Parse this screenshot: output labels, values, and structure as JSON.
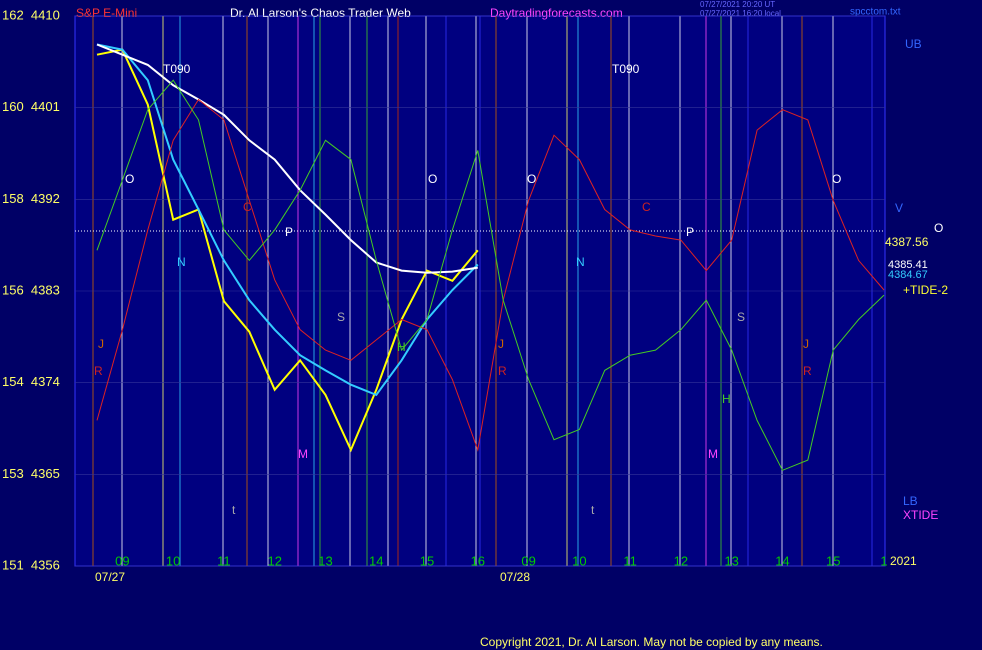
{
  "chart_data": {
    "type": "line",
    "title": "Dr. Al Larson's Chaos Trader Web",
    "instrument": "S&P E-Mini",
    "site": "Daytradingforecasts.com",
    "timestamp_1": "07/27/2021 20:20 UT",
    "timestamp_2": "07/27/2021 16:20 local",
    "file": "spcctom.txt",
    "copyright": "Copyright 2021, Dr. Al Larson. May not be copied by any means.",
    "dates": [
      "07/27",
      "07/28"
    ],
    "year": "2021",
    "categories": [
      null,
      "09",
      null,
      "10",
      null,
      "11",
      null,
      "12",
      null,
      "13",
      null,
      "14",
      null,
      "15",
      null,
      "16",
      null,
      "09",
      null,
      "10",
      null,
      "11",
      null,
      "12",
      null,
      "13",
      null,
      "14",
      null,
      "15",
      null,
      "1"
    ],
    "ylim": [
      4356,
      4410
    ],
    "yticks": [
      {
        "value": 4356,
        "label": "151  4356"
      },
      {
        "value": 4365,
        "label": "153  4365"
      },
      {
        "value": 4374,
        "label": "154  4374"
      },
      {
        "value": 4383,
        "label": "156  4383"
      },
      {
        "value": 4392,
        "label": "158  4392"
      },
      {
        "value": 4401,
        "label": "160  4401"
      },
      {
        "value": 4410,
        "label": "162  4410"
      }
    ],
    "price_labels": [
      "4387.56",
      "4385.41",
      "4384.67"
    ],
    "annotations": [
      "UB",
      "LB",
      "XTIDE",
      "T090",
      "T090",
      "+TIDE-2",
      "V",
      "O",
      "O",
      "O",
      "O",
      "O",
      "C",
      "C",
      "P",
      "P",
      "N",
      "N",
      "S",
      "S",
      "J",
      "J",
      "J",
      "R",
      "R",
      "R",
      "M",
      "M",
      "H",
      "H",
      "t",
      "t"
    ],
    "series": [
      {
        "color": "#ffff00",
        "values": [
          4406.2,
          4406.7,
          4401.3,
          4390,
          4391,
          4382,
          4379,
          4373.3,
          4376.2,
          4372.8,
          4367.4,
          4373.3,
          4380.2,
          4385,
          4384,
          4387,
          null,
          null,
          null,
          null,
          null,
          null,
          null,
          null,
          null,
          null,
          null,
          null,
          null,
          null,
          null,
          null
        ]
      },
      {
        "color": "#33ccff",
        "values": [
          4407.2,
          4406.7,
          4403.7,
          4395.9,
          4391,
          4386,
          4382.1,
          4379.2,
          4376.7,
          4375.2,
          4373.8,
          4372.8,
          4376.2,
          4380.2,
          4383.1,
          4385.6,
          null,
          null,
          null,
          null,
          null,
          null,
          null,
          null,
          null,
          null,
          null,
          null,
          null,
          null,
          null,
          null
        ]
      },
      {
        "color": "#ffffff",
        "values": [
          4407.2,
          4406.2,
          4405.2,
          4403.2,
          4401.8,
          4400.3,
          4397.8,
          4395.9,
          4392.9,
          4390.5,
          4388,
          4385.8,
          4385,
          4384.8,
          4384.9,
          4385.3,
          null,
          null,
          null,
          null,
          null,
          null,
          null,
          null,
          null,
          null,
          null,
          null,
          null,
          null,
          null,
          null
        ]
      },
      {
        "color": "#dd2222",
        "values": [
          4370.3,
          4379.2,
          4389,
          4397.8,
          4401.8,
          4399.8,
          4391.9,
          4384.1,
          4379.2,
          4377.2,
          4376.2,
          4378.2,
          4380.2,
          4379.2,
          4374.3,
          4367.4,
          4382.1,
          4391.9,
          4398.3,
          4395.9,
          4391,
          4389,
          4388.4,
          4388,
          4385,
          4388,
          4398.8,
          4400.8,
          4399.8,
          4391.9,
          4386,
          4383.1
        ]
      },
      {
        "color": "#44cc22",
        "values": [
          4387,
          4393.9,
          4400.8,
          4403.7,
          4399.8,
          4389,
          4386,
          4389,
          4392.9,
          4397.8,
          4395.9,
          4386,
          4377.2,
          4380.2,
          4389,
          4396.8,
          4382.1,
          4374.3,
          4368.4,
          4369.4,
          4375.2,
          4376.7,
          4377.2,
          4379.2,
          4382.1,
          4377.2,
          4370.3,
          4365.4,
          4366.4,
          4377.2,
          4380.2,
          4382.6
        ]
      }
    ]
  }
}
